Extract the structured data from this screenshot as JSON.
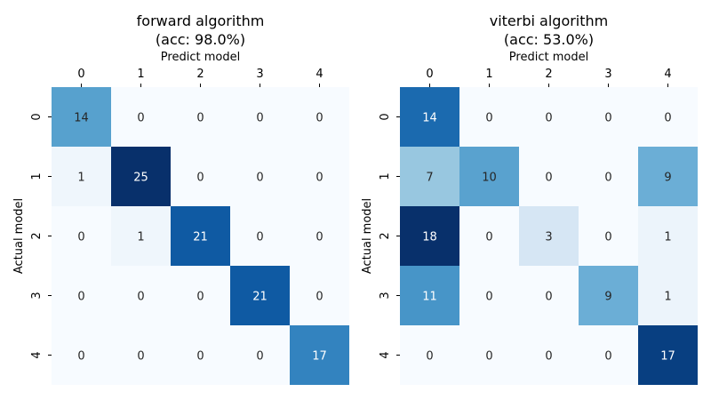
{
  "chart_data": [
    {
      "type": "heatmap",
      "title": "forward algorithm",
      "subtitle": "(acc: 98.0%)",
      "xlabel": "Predict model",
      "ylabel": "Actual model",
      "x_categories": [
        "0",
        "1",
        "2",
        "3",
        "4"
      ],
      "y_categories": [
        "0",
        "1",
        "2",
        "3",
        "4"
      ],
      "values": [
        [
          14,
          0,
          0,
          0,
          0
        ],
        [
          1,
          25,
          0,
          0,
          0
        ],
        [
          0,
          1,
          21,
          0,
          0
        ],
        [
          0,
          0,
          0,
          21,
          0
        ],
        [
          0,
          0,
          0,
          0,
          17
        ]
      ],
      "colormap": "Blues",
      "colorbar": false
    },
    {
      "type": "heatmap",
      "title": "viterbi algorithm",
      "subtitle": "(acc: 53.0%)",
      "xlabel": "Predict model",
      "ylabel": "Actual model",
      "x_categories": [
        "0",
        "1",
        "2",
        "3",
        "4"
      ],
      "y_categories": [
        "0",
        "1",
        "2",
        "3",
        "4"
      ],
      "values": [
        [
          14,
          0,
          0,
          0,
          0
        ],
        [
          7,
          10,
          0,
          0,
          9
        ],
        [
          18,
          0,
          3,
          0,
          1
        ],
        [
          11,
          0,
          0,
          9,
          1
        ],
        [
          0,
          0,
          0,
          0,
          17
        ]
      ],
      "colormap": "Blues",
      "colorbar": false
    }
  ]
}
